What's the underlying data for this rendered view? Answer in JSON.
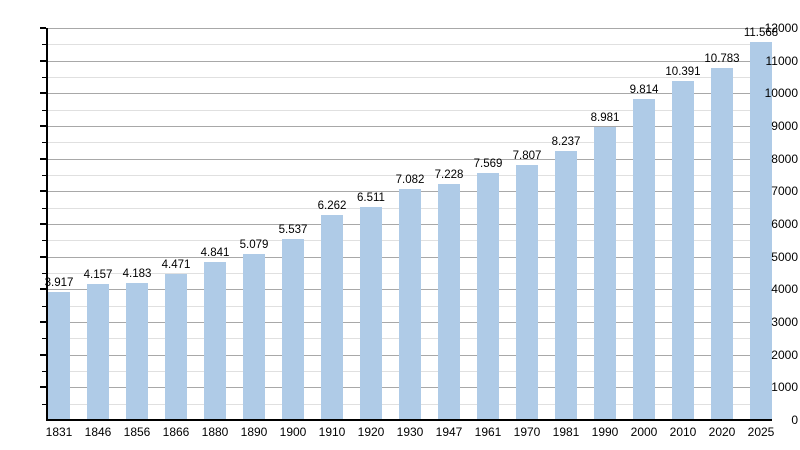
{
  "chart_data": {
    "type": "bar",
    "title": "",
    "xlabel": "",
    "ylabel": "",
    "categories": [
      "1831",
      "1846",
      "1856",
      "1866",
      "1880",
      "1890",
      "1900",
      "1910",
      "1920",
      "1930",
      "1947",
      "1961",
      "1970",
      "1981",
      "1990",
      "2000",
      "2010",
      "2020",
      "2025"
    ],
    "values": [
      3917,
      4157,
      4183,
      4471,
      4841,
      5079,
      5537,
      6262,
      6511,
      7082,
      7228,
      7569,
      7807,
      8237,
      8981,
      9814,
      10391,
      10783,
      11568
    ],
    "bar_labels": [
      "3.917",
      "4.157",
      "4.183",
      "4.471",
      "4.841",
      "5.079",
      "5.537",
      "6.262",
      "6.511",
      "7.082",
      "7.228",
      "7.569",
      "7.807",
      "8.237",
      "8.981",
      "9.814",
      "10.391",
      "10.783",
      "11.568"
    ],
    "ylim": [
      0,
      12000
    ],
    "y_major_step": 1000,
    "y_minor_step": 500,
    "y_tick_labels": [
      "0",
      "1000",
      "2000",
      "3000",
      "4000",
      "5000",
      "6000",
      "7000",
      "8000",
      "9000",
      "10000",
      "11000",
      "12000"
    ],
    "grid": true,
    "legend": null,
    "colors": {
      "bar": "#afcbe7",
      "major_grid": "#a8a8a8",
      "minor_grid": "#e0e0e0",
      "axis": "#000000",
      "text": "#000000",
      "background": "#ffffff"
    }
  }
}
